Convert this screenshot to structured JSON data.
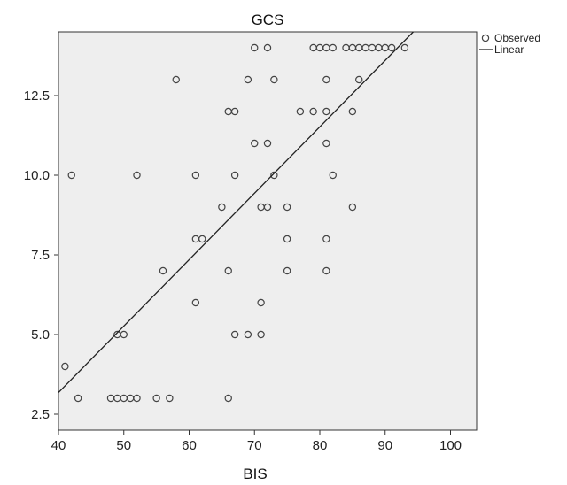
{
  "chart_data": {
    "type": "scatter",
    "title": "GCS",
    "xlabel": "BIS",
    "ylabel": "",
    "xlim": [
      40,
      104
    ],
    "ylim": [
      2,
      14.5
    ],
    "xticks": [
      40,
      50,
      60,
      70,
      80,
      90,
      100
    ],
    "yticks": [
      2.5,
      5.0,
      7.5,
      10.0,
      12.5
    ],
    "ytick_labels": [
      "2.5",
      "5.0",
      "7.5",
      "10.0",
      "12.5"
    ],
    "grid": false,
    "background": "#eeeeee",
    "legend": {
      "placement": "top-right outside",
      "entries": [
        "Observed",
        "Linear"
      ]
    },
    "series": [
      {
        "name": "Observed",
        "marker": "open-circle",
        "points": [
          [
            41,
            4
          ],
          [
            42,
            10
          ],
          [
            43,
            3
          ],
          [
            48,
            3
          ],
          [
            49,
            3
          ],
          [
            49,
            5
          ],
          [
            50,
            3
          ],
          [
            50,
            5
          ],
          [
            51,
            3
          ],
          [
            52,
            3
          ],
          [
            52,
            10
          ],
          [
            55,
            3
          ],
          [
            56,
            7
          ],
          [
            57,
            3
          ],
          [
            58,
            13
          ],
          [
            61,
            6
          ],
          [
            61,
            8
          ],
          [
            61,
            10
          ],
          [
            62,
            8
          ],
          [
            65,
            9
          ],
          [
            66,
            3
          ],
          [
            66,
            7
          ],
          [
            66,
            12
          ],
          [
            67,
            5
          ],
          [
            67,
            10
          ],
          [
            67,
            12
          ],
          [
            69,
            5
          ],
          [
            69,
            13
          ],
          [
            70,
            11
          ],
          [
            70,
            14
          ],
          [
            71,
            5
          ],
          [
            71,
            6
          ],
          [
            71,
            9
          ],
          [
            72,
            9
          ],
          [
            72,
            11
          ],
          [
            72,
            14
          ],
          [
            73,
            10
          ],
          [
            73,
            13
          ],
          [
            75,
            7
          ],
          [
            75,
            8
          ],
          [
            75,
            9
          ],
          [
            77,
            12
          ],
          [
            79,
            12
          ],
          [
            79,
            14
          ],
          [
            80,
            14
          ],
          [
            81,
            7
          ],
          [
            81,
            8
          ],
          [
            81,
            11
          ],
          [
            81,
            12
          ],
          [
            81,
            13
          ],
          [
            81,
            14
          ],
          [
            82,
            10
          ],
          [
            82,
            14
          ],
          [
            84,
            14
          ],
          [
            85,
            9
          ],
          [
            85,
            12
          ],
          [
            85,
            14
          ],
          [
            86,
            13
          ],
          [
            86,
            14
          ],
          [
            87,
            14
          ],
          [
            88,
            14
          ],
          [
            89,
            14
          ],
          [
            90,
            14
          ],
          [
            91,
            14
          ],
          [
            93,
            14
          ]
        ]
      },
      {
        "name": "Linear",
        "type": "line",
        "x": [
          40,
          94.3
        ],
        "y": [
          3.18,
          14.5
        ]
      }
    ]
  },
  "colors": {
    "plot_background": "#eeeeee",
    "marker_stroke": "#444444",
    "line": "#222222",
    "frame": "#333333"
  }
}
